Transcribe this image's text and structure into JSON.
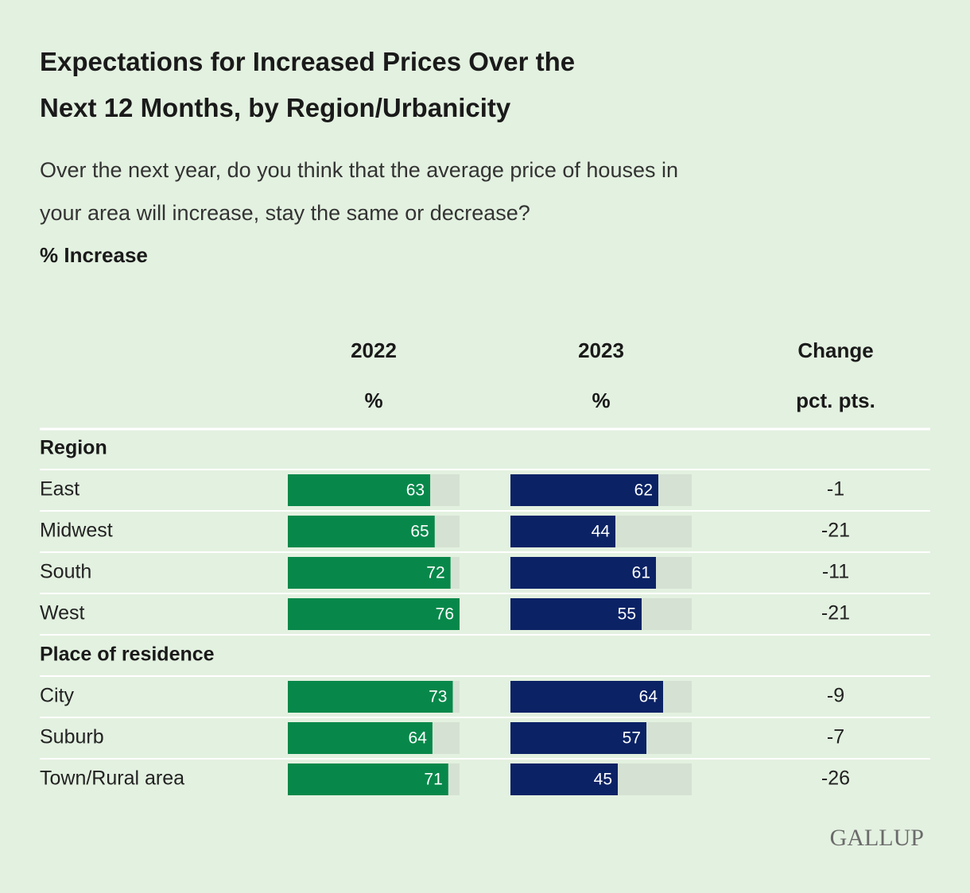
{
  "chart_data": {
    "type": "bar",
    "title": "Expectations for Increased Prices Over the Next 12 Months, by Region/Urbanicity",
    "subtitle": "Over the next year, do you think that the average price of houses in your area will increase, stay the same or decrease?",
    "measure": "% Increase",
    "groups": [
      {
        "name": "Region",
        "categories": [
          "East",
          "Midwest",
          "South",
          "West"
        ]
      },
      {
        "name": "Place of residence",
        "categories": [
          "City",
          "Suburb",
          "Town/Rural area"
        ]
      }
    ],
    "xlim": [
      0,
      76
    ],
    "series": [
      {
        "name": "2022",
        "unit": "%",
        "color": "#07884a",
        "values": [
          63,
          65,
          72,
          76,
          73,
          64,
          71
        ]
      },
      {
        "name": "2023",
        "unit": "%",
        "color": "#0b2265",
        "values": [
          62,
          44,
          61,
          55,
          64,
          57,
          45
        ]
      },
      {
        "name": "Change",
        "unit": "pct. pts.",
        "values": [
          -1,
          -21,
          -11,
          -21,
          -9,
          -7,
          -26
        ]
      }
    ],
    "source": "GALLUP"
  }
}
